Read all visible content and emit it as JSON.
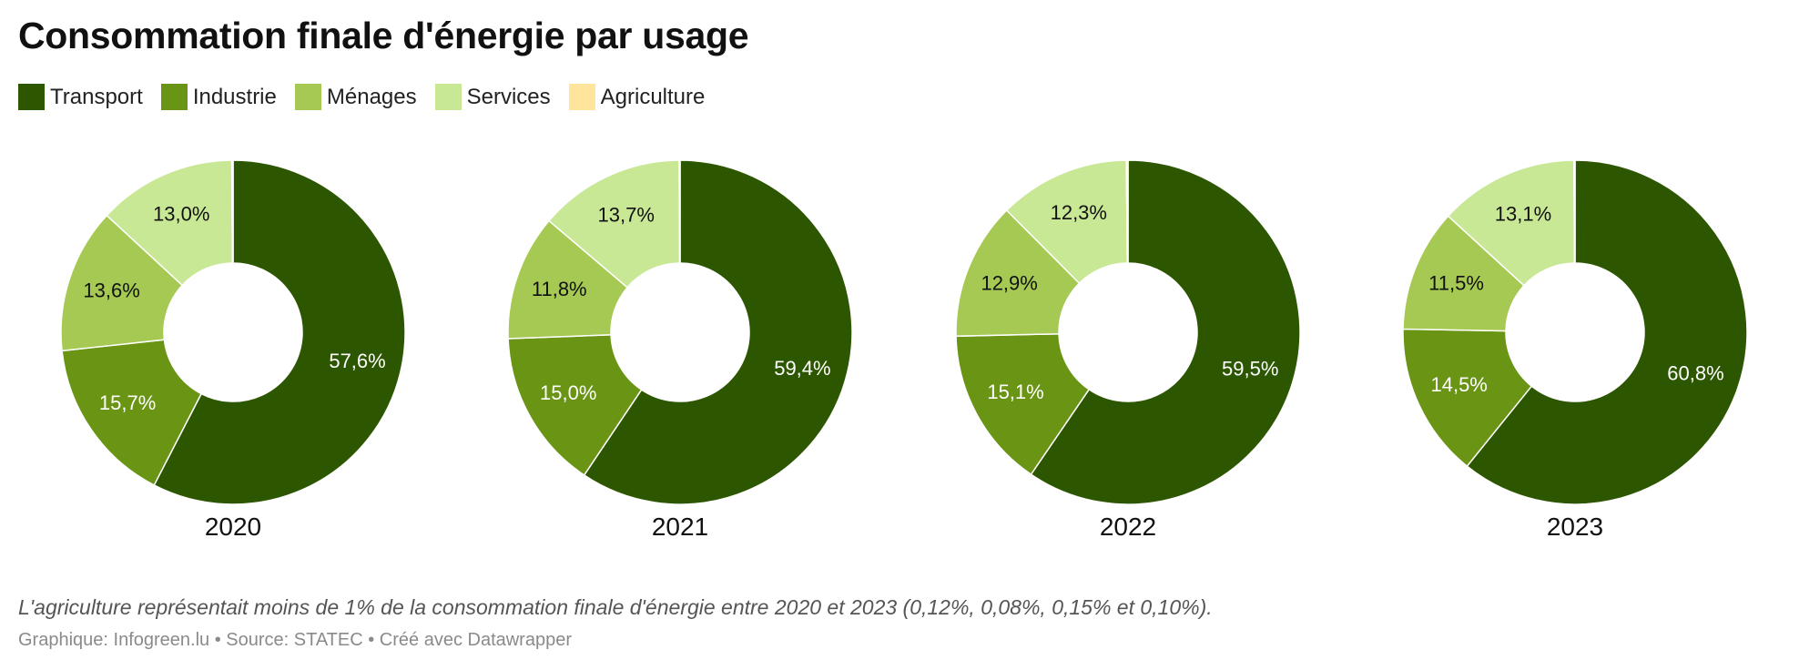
{
  "title": "Consommation finale d'énergie par usage",
  "legend": [
    {
      "label": "Transport",
      "color": "#2d5601"
    },
    {
      "label": "Industrie",
      "color": "#6a9414"
    },
    {
      "label": "Ménages",
      "color": "#a5c952"
    },
    {
      "label": "Services",
      "color": "#c8e896"
    },
    {
      "label": "Agriculture",
      "color": "#ffe59c"
    }
  ],
  "chart_data": [
    {
      "type": "pie",
      "variant": "donut",
      "title": "2020",
      "categories": [
        "Transport",
        "Industrie",
        "Ménages",
        "Services",
        "Agriculture"
      ],
      "values": [
        57.6,
        15.7,
        13.6,
        13.0,
        0.12
      ],
      "labels": [
        "57,6%",
        "15,7%",
        "13,6%",
        "13,0%",
        ""
      ]
    },
    {
      "type": "pie",
      "variant": "donut",
      "title": "2021",
      "categories": [
        "Transport",
        "Industrie",
        "Ménages",
        "Services",
        "Agriculture"
      ],
      "values": [
        59.4,
        15.0,
        11.8,
        13.7,
        0.08
      ],
      "labels": [
        "59,4%",
        "15,0%",
        "11,8%",
        "13,7%",
        ""
      ]
    },
    {
      "type": "pie",
      "variant": "donut",
      "title": "2022",
      "categories": [
        "Transport",
        "Industrie",
        "Ménages",
        "Services",
        "Agriculture"
      ],
      "values": [
        59.5,
        15.1,
        12.9,
        12.3,
        0.15
      ],
      "labels": [
        "59,5%",
        "15,1%",
        "12,9%",
        "12,3%",
        ""
      ]
    },
    {
      "type": "pie",
      "variant": "donut",
      "title": "2023",
      "categories": [
        "Transport",
        "Industrie",
        "Ménages",
        "Services",
        "Agriculture"
      ],
      "values": [
        60.8,
        14.5,
        11.5,
        13.1,
        0.1
      ],
      "labels": [
        "60,8%",
        "14,5%",
        "11,5%",
        "13,1%",
        ""
      ]
    }
  ],
  "note": "L'agriculture représentait moins de 1% de la consommation finale d'énergie entre 2020 et 2023 (0,12%, 0,08%, 0,15% et 0,10%).",
  "footer": "Graphique: Infogreen.lu • Source: STATEC • Créé avec Datawrapper",
  "label_colors": {
    "dark": "#ffffff",
    "light": "#111111"
  }
}
